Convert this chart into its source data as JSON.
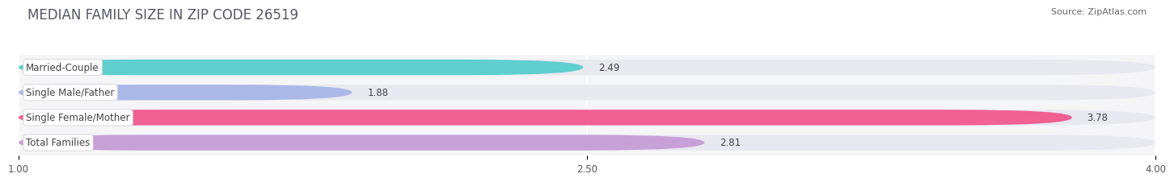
{
  "title": "MEDIAN FAMILY SIZE IN ZIP CODE 26519",
  "source": "Source: ZipAtlas.com",
  "categories": [
    "Married-Couple",
    "Single Male/Father",
    "Single Female/Mother",
    "Total Families"
  ],
  "values": [
    2.49,
    1.88,
    3.78,
    2.81
  ],
  "bar_colors": [
    "#5ecece",
    "#aab8e8",
    "#f06090",
    "#c8a0d8"
  ],
  "bar_bg_color": "#e8e8f0",
  "xlim": [
    1.0,
    4.0
  ],
  "xticks": [
    1.0,
    2.5,
    4.0
  ],
  "xticklabels": [
    "1.00",
    "2.50",
    "4.00"
  ],
  "label_fontsize": 8.5,
  "value_fontsize": 8.5,
  "title_fontsize": 12,
  "source_fontsize": 8,
  "bar_height": 0.62,
  "background_color": "#ffffff",
  "row_bg_color": "#f5f5f8"
}
